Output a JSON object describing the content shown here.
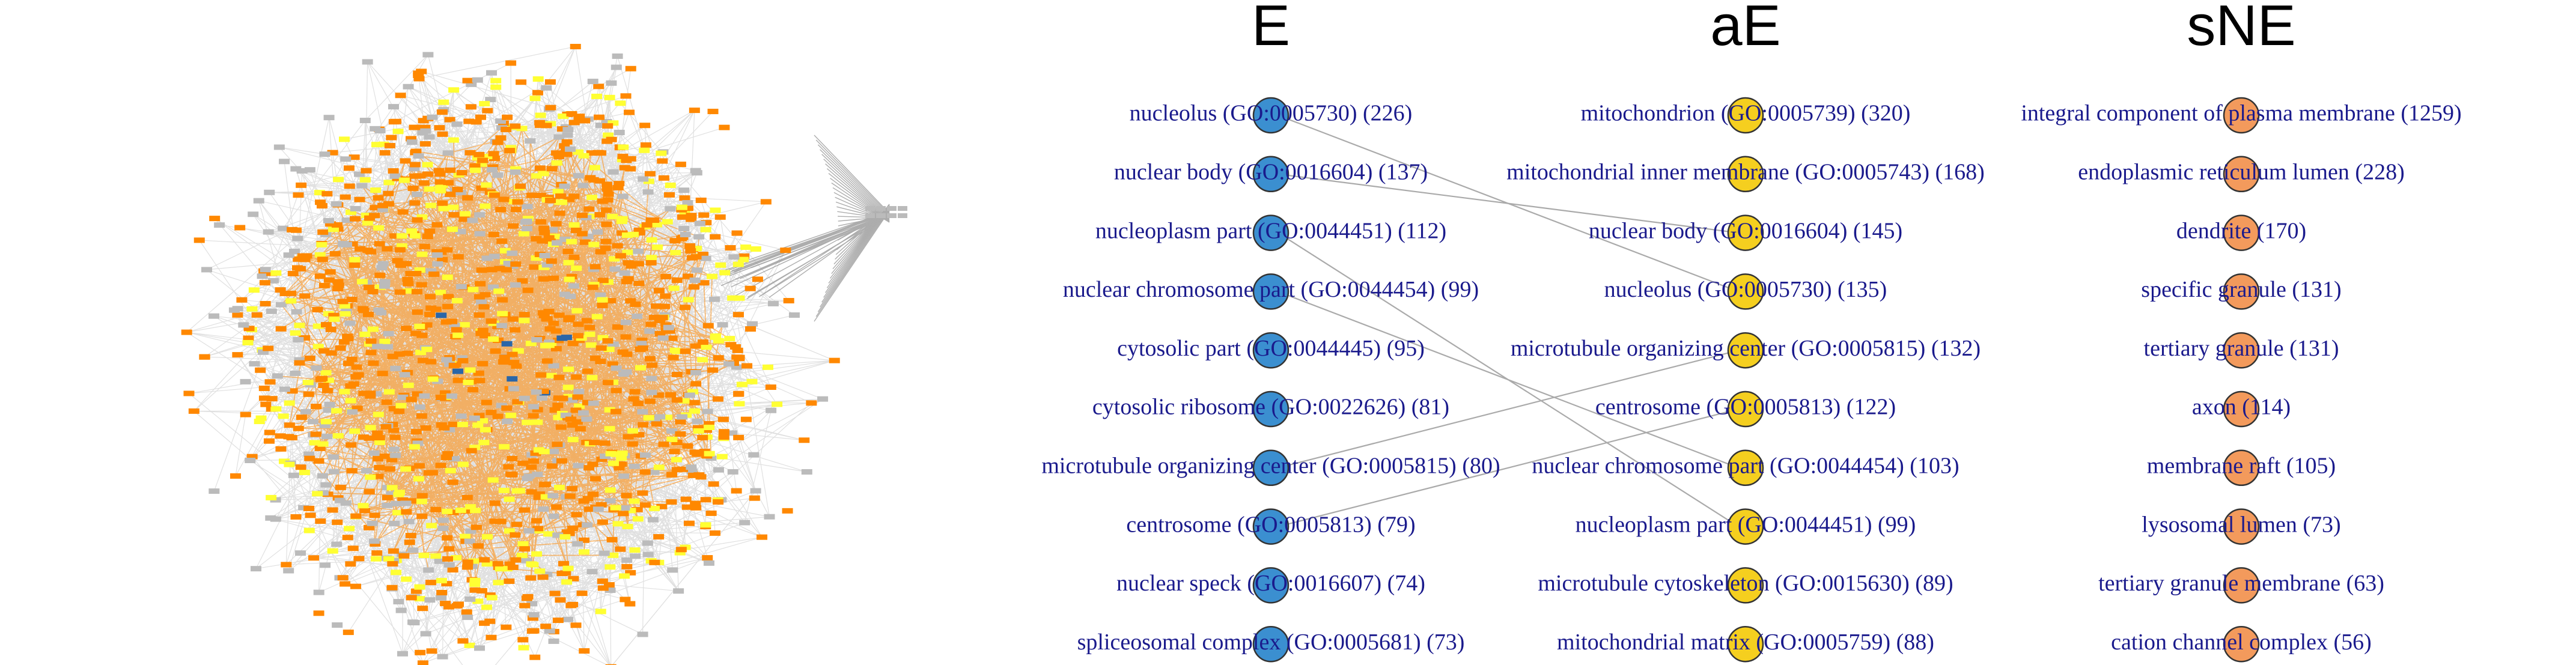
{
  "colors": {
    "E": "#3b8fd0",
    "aE": "#f5cf1f",
    "sNE": "#f39a5c",
    "label": "#1a1a8c",
    "edge": "#aaaaaa",
    "network_orange": "#ff8800",
    "network_yellow": "#ffff33",
    "network_gray": "#bbbbbb",
    "network_blue": "#2a66a8"
  },
  "network": {
    "node_types": [
      "orange",
      "yellow",
      "gray",
      "blue"
    ]
  },
  "columns": [
    {
      "key": "E",
      "title": "E",
      "terms": [
        "nucleolus (GO:0005730) (226)",
        "nuclear body (GO:0016604) (137)",
        "nucleoplasm part (GO:0044451) (112)",
        "nuclear chromosome part (GO:0044454) (99)",
        "cytosolic part (GO:0044445) (95)",
        "cytosolic ribosome (GO:0022626) (81)",
        "microtubule organizing center (GO:0005815) (80)",
        "centrosome (GO:0005813) (79)",
        "nuclear speck (GO:0016607) (74)",
        "spliceosomal complex (GO:0005681) (73)"
      ]
    },
    {
      "key": "aE",
      "title": "aE",
      "terms": [
        "mitochondrion (GO:0005739) (320)",
        "mitochondrial inner membrane (GO:0005743) (168)",
        "nuclear body (GO:0016604) (145)",
        "nucleolus (GO:0005730) (135)",
        "microtubule organizing center (GO:0005815) (132)",
        "centrosome (GO:0005813) (122)",
        "nuclear chromosome part (GO:0044454) (103)",
        "nucleoplasm part (GO:0044451) (99)",
        "microtubule cytoskeleton (GO:0015630) (89)",
        "mitochondrial matrix (GO:0005759) (88)"
      ]
    },
    {
      "key": "sNE",
      "title": "sNE",
      "terms": [
        "integral component of plasma membrane (1259)",
        "endoplasmic reticulum lumen (228)",
        "dendrite (170)",
        "specific granule (131)",
        "tertiary granule (131)",
        "axon (114)",
        "membrane raft (105)",
        "lysosomal lumen (73)",
        "tertiary granule membrane (63)",
        "cation channel complex (56)"
      ]
    }
  ],
  "links": [
    {
      "from": 0,
      "to": 3
    },
    {
      "from": 1,
      "to": 2
    },
    {
      "from": 2,
      "to": 7
    },
    {
      "from": 3,
      "to": 6
    },
    {
      "from": 6,
      "to": 4
    },
    {
      "from": 7,
      "to": 5
    }
  ]
}
